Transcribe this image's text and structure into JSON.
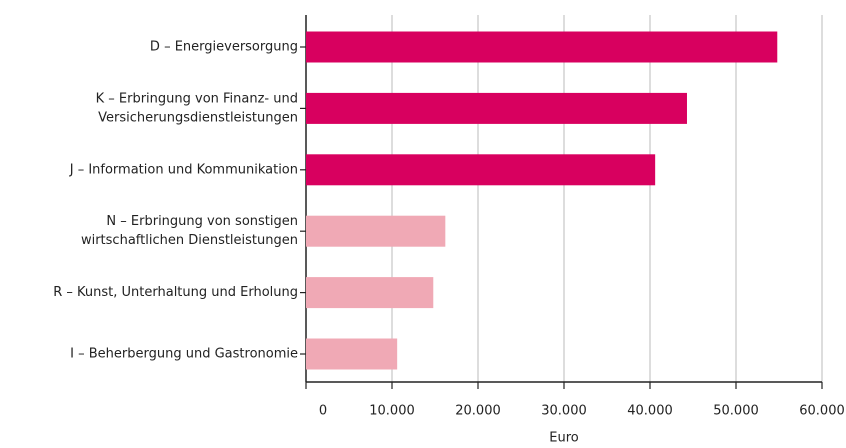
{
  "chart_data": {
    "type": "barh",
    "categories": [
      [
        "D – Energieversorgung"
      ],
      [
        "K – Erbringung von Finanz- und",
        "Versicherungsdienstleistungen"
      ],
      [
        "J – Information und Kommunikation"
      ],
      [
        "N – Erbringung von sonstigen",
        "wirtschaftlichen Dienstleistungen"
      ],
      [
        "R – Kunst, Unterhaltung und Erholung"
      ],
      [
        "I – Beherbergung und Gastronomie"
      ]
    ],
    "values": [
      54800,
      44300,
      40600,
      16200,
      14800,
      10600
    ],
    "colors": [
      "#d8005f",
      "#d8005f",
      "#d8005f",
      "#f0a9b5",
      "#f0a9b5",
      "#f0a9b5"
    ],
    "xlabel": "Euro",
    "xlim": [
      0,
      60000
    ],
    "xticks": [
      0,
      {
        "value": 10000,
        "label": "10.000"
      },
      {
        "value": 20000,
        "label": "20.000"
      },
      {
        "value": 30000,
        "label": "30.000"
      },
      {
        "value": 40000,
        "label": "40.000"
      },
      {
        "value": 50000,
        "label": "50.000"
      },
      {
        "value": 60000,
        "label": "60.000"
      }
    ],
    "grid": true
  }
}
